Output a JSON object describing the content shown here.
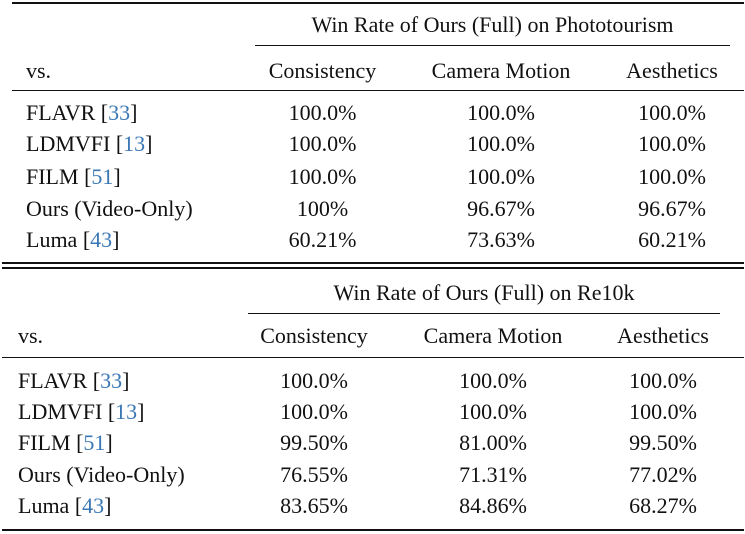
{
  "tables": [
    {
      "group_header": "Win Rate of Ours (Full) on Phototourism",
      "columns": [
        "vs.",
        "Consistency",
        "Camera Motion",
        "Aesthetics"
      ],
      "rows": [
        {
          "method": "FLAVR",
          "ref": "33",
          "values": [
            "100.0%",
            "100.0%",
            "100.0%"
          ]
        },
        {
          "method": "LDMVFI",
          "ref": "13",
          "values": [
            "100.0%",
            "100.0%",
            "100.0%"
          ]
        },
        {
          "method": "FILM",
          "ref": "51",
          "values": [
            "100.0%",
            "100.0%",
            "100.0%"
          ]
        },
        {
          "method": "Ours (Video-Only)",
          "ref": "",
          "values": [
            "100%",
            "96.67%",
            "96.67%"
          ]
        },
        {
          "method": "Luma",
          "ref": "43",
          "values": [
            "60.21%",
            "73.63%",
            "60.21%"
          ]
        }
      ]
    },
    {
      "group_header": "Win Rate of Ours (Full) on Re10k",
      "columns": [
        "vs.",
        "Consistency",
        "Camera Motion",
        "Aesthetics"
      ],
      "rows": [
        {
          "method": "FLAVR",
          "ref": "33",
          "values": [
            "100.0%",
            "100.0%",
            "100.0%"
          ]
        },
        {
          "method": "LDMVFI",
          "ref": "13",
          "values": [
            "100.0%",
            "100.0%",
            "100.0%"
          ]
        },
        {
          "method": "FILM",
          "ref": "51",
          "values": [
            "99.50%",
            "81.00%",
            "99.50%"
          ]
        },
        {
          "method": "Ours (Video-Only)",
          "ref": "",
          "values": [
            "76.55%",
            "71.31%",
            "77.02%"
          ]
        },
        {
          "method": "Luma",
          "ref": "43",
          "values": [
            "83.65%",
            "84.86%",
            "68.27%"
          ]
        }
      ]
    }
  ]
}
